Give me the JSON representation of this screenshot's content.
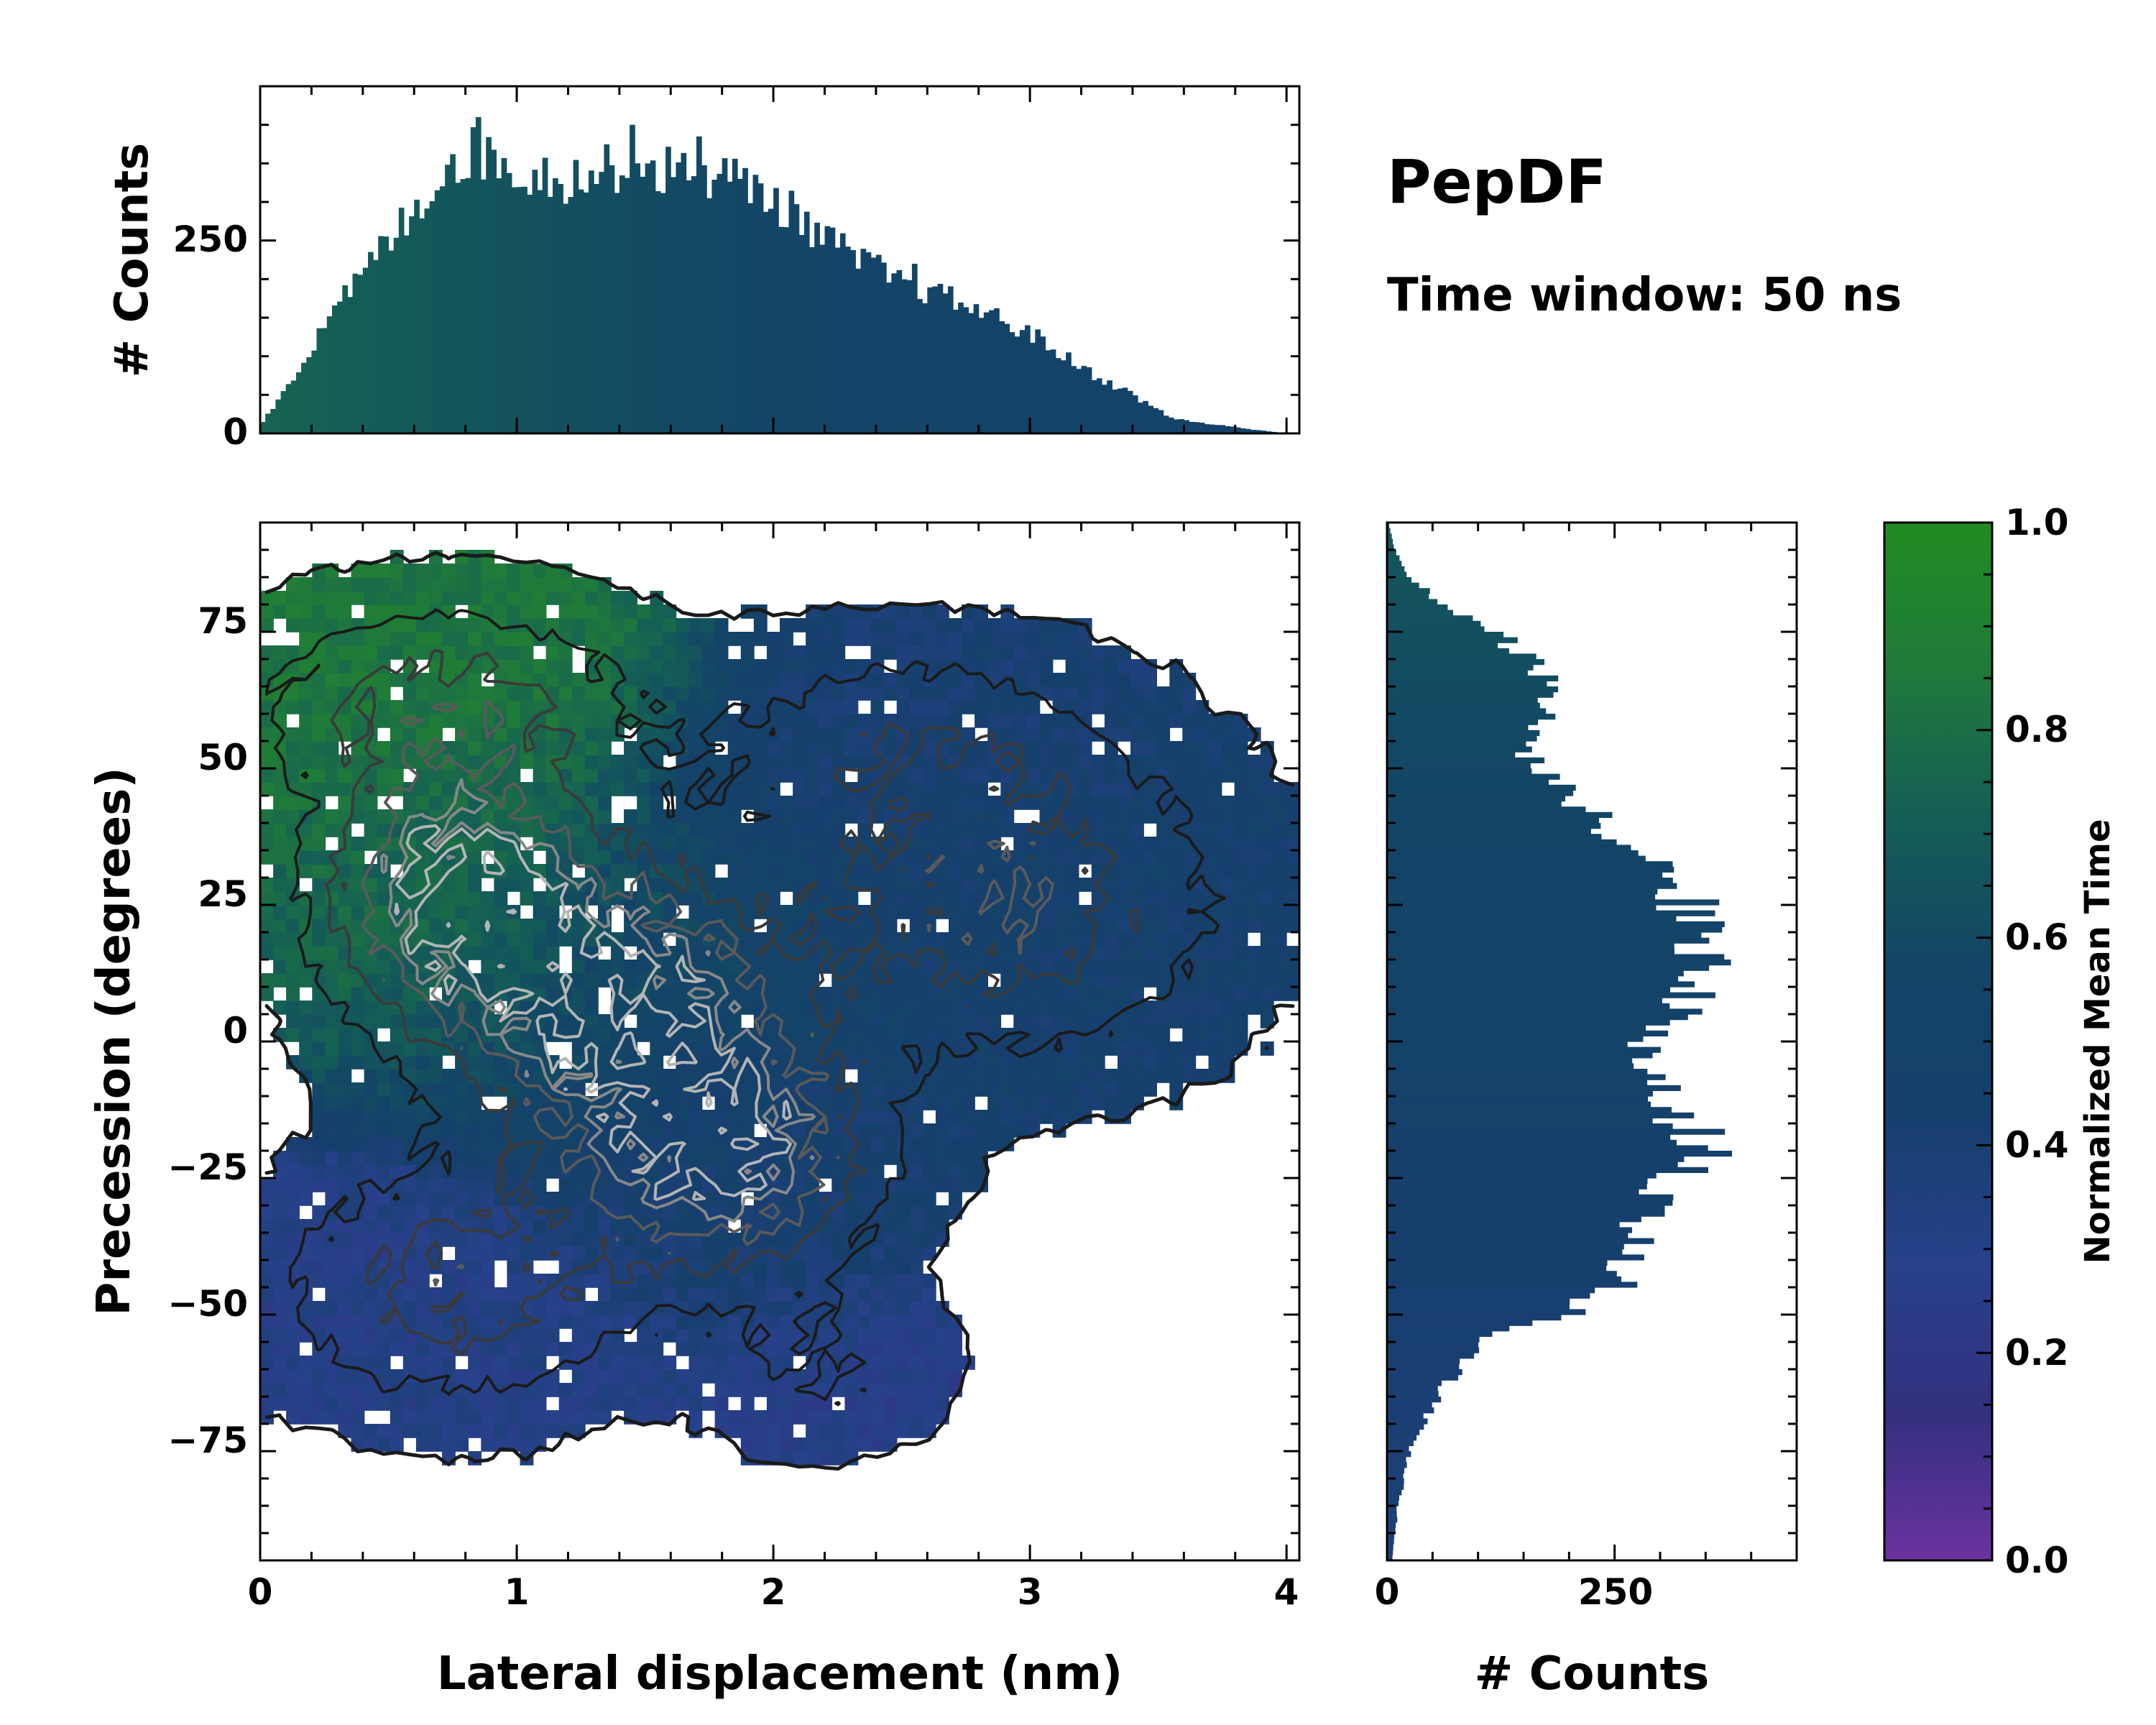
{
  "title": "PepDF",
  "subtitle": "Time window: 50 ns",
  "colors": {
    "cmap": [
      "#6a329f",
      "#33307f",
      "#27418a",
      "#163f6d",
      "#134566",
      "#145d57",
      "#1f7a3a",
      "#228b22"
    ],
    "contour_dark": "#1a1a1a",
    "contour_mid": "#5a5a5a",
    "contour_light": "#b4b4b4"
  },
  "chart_data": [
    {
      "id": "joint",
      "type": "heatmap",
      "xlabel": "Lateral displacement (nm)",
      "ylabel": "Precession (degrees)",
      "xlim": [
        0,
        4.05
      ],
      "ylim": [
        -95,
        95
      ],
      "xticks": [
        "0",
        "1",
        "2",
        "3",
        "4"
      ],
      "yticks": [
        "−75",
        "−50",
        "−25",
        "0",
        "25",
        "50",
        "75"
      ],
      "value": "Normalized Mean Time",
      "clusters": [
        {
          "x": 0.75,
          "y": 28,
          "sx": 0.33,
          "sy": 15,
          "count": 95,
          "time": 0.78
        },
        {
          "x": 1.35,
          "y": 8,
          "sx": 0.45,
          "sy": 18,
          "count": 90,
          "time": 0.58
        },
        {
          "x": 1.8,
          "y": -20,
          "sx": 0.38,
          "sy": 15,
          "count": 95,
          "time": 0.42
        },
        {
          "x": 2.9,
          "y": 25,
          "sx": 0.55,
          "sy": 18,
          "count": 55,
          "time": 0.45
        },
        {
          "x": 0.7,
          "y": 62,
          "sx": 0.5,
          "sy": 12,
          "count": 45,
          "time": 0.84
        },
        {
          "x": 0.75,
          "y": -45,
          "sx": 0.45,
          "sy": 14,
          "count": 50,
          "time": 0.3
        },
        {
          "x": 2.5,
          "y": 55,
          "sx": 0.55,
          "sy": 12,
          "count": 30,
          "time": 0.4
        },
        {
          "x": 2.2,
          "y": -60,
          "sx": 0.3,
          "sy": 10,
          "count": 20,
          "time": 0.28
        }
      ]
    },
    {
      "id": "top-histogram",
      "type": "bar",
      "ylabel": "# Counts",
      "xlim": [
        0,
        4.05
      ],
      "ylim": [
        0,
        450
      ],
      "yticks": [
        "0",
        "250"
      ],
      "bin_width": 0.02,
      "x": [
        0.0,
        0.2,
        0.4,
        0.6,
        0.75,
        0.85,
        1.0,
        1.2,
        1.4,
        1.6,
        1.8,
        1.95,
        2.1,
        2.3,
        2.45,
        2.6,
        2.8,
        3.0,
        3.2,
        3.4,
        3.55,
        3.7,
        3.85,
        4.0
      ],
      "values": [
        10,
        110,
        210,
        290,
        355,
        365,
        340,
        330,
        345,
        340,
        335,
        315,
        280,
        230,
        205,
        185,
        160,
        130,
        85,
        50,
        20,
        12,
        6,
        0
      ],
      "spikes": [
        {
          "x": 0.85,
          "value": 410
        },
        {
          "x": 1.45,
          "value": 400
        },
        {
          "x": 1.72,
          "value": 385
        },
        {
          "x": 2.55,
          "value": 220
        }
      ],
      "time_by_x": [
        0.75,
        0.65,
        0.57,
        0.52,
        0.5
      ]
    },
    {
      "id": "right-histogram",
      "type": "bar",
      "orientation": "horizontal",
      "xlabel": "# Counts",
      "xlim": [
        0,
        450
      ],
      "ylim": [
        -95,
        95
      ],
      "xticks": [
        "0",
        "250"
      ],
      "bin_width": 1,
      "y": [
        -95,
        -85,
        -75,
        -65,
        -55,
        -50,
        -45,
        -40,
        -35,
        -30,
        -25,
        -20,
        -15,
        -10,
        -5,
        0,
        5,
        10,
        15,
        20,
        25,
        30,
        35,
        40,
        45,
        50,
        55,
        60,
        65,
        70,
        75,
        80,
        85,
        90,
        95
      ],
      "values": [
        5,
        12,
        25,
        55,
        100,
        195,
        245,
        260,
        270,
        300,
        320,
        345,
        330,
        300,
        280,
        290,
        320,
        340,
        355,
        350,
        330,
        310,
        270,
        240,
        200,
        160,
        150,
        175,
        180,
        160,
        115,
        60,
        25,
        8,
        2
      ],
      "time_by_y": [
        0.38,
        0.4,
        0.45,
        0.5,
        0.55,
        0.6,
        0.68
      ]
    },
    {
      "id": "colorbar",
      "type": "colorbar",
      "label": "Normalized Mean Time",
      "range": [
        0.0,
        1.0
      ],
      "ticks": [
        "0.0",
        "0.2",
        "0.4",
        "0.6",
        "0.8",
        "1.0"
      ]
    }
  ]
}
